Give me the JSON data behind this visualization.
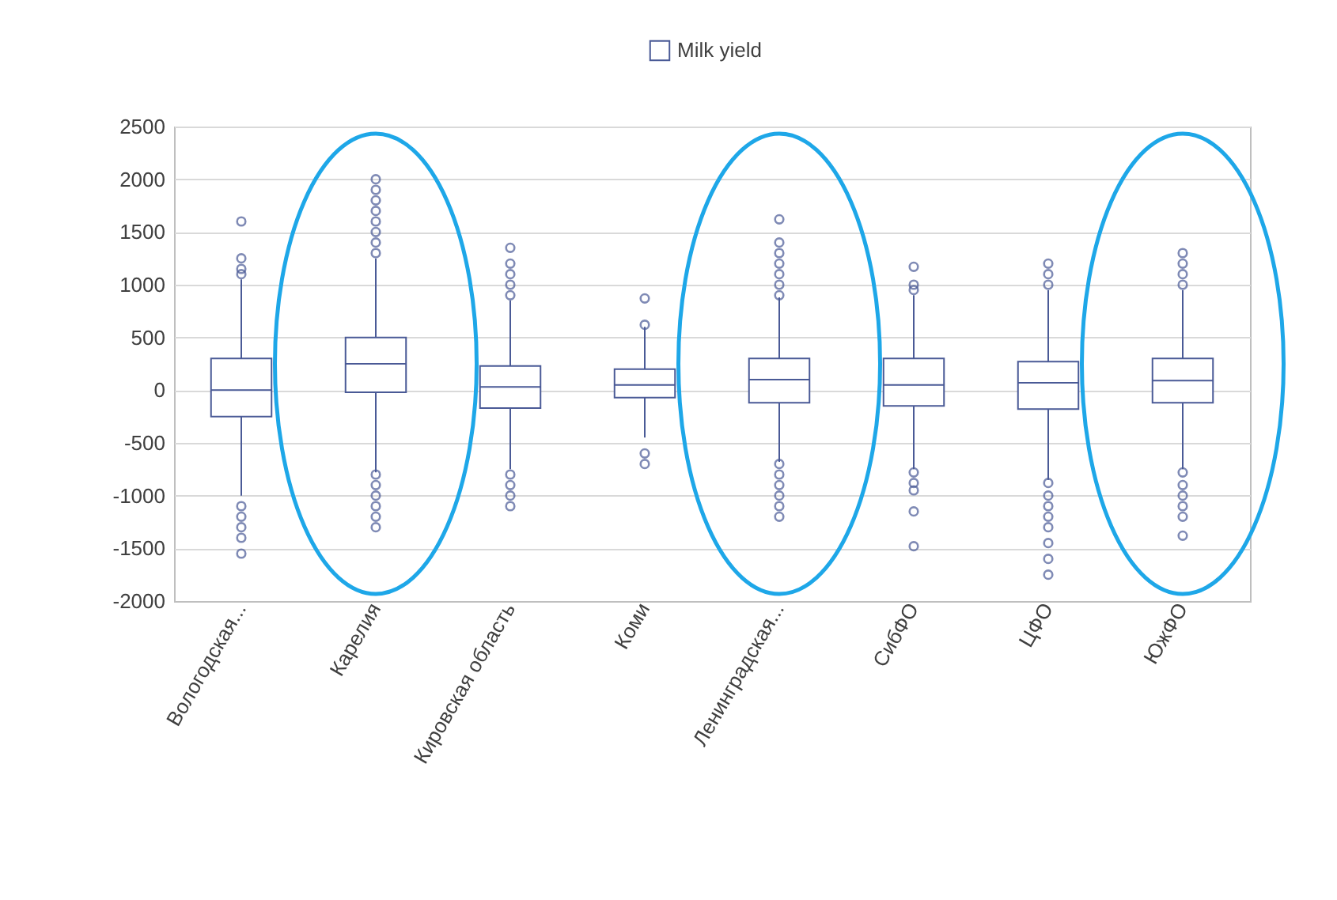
{
  "chart_data": {
    "type": "box",
    "categories": [
      "Вологодская...",
      "Карелия",
      "Кировская область",
      "Коми",
      "Ленинградская...",
      "СибФО",
      "ЦФО",
      "ЮжФО"
    ],
    "series": [
      {
        "name": "Milk yield",
        "color": "#4a5a96",
        "boxes": [
          {
            "low": -1000,
            "q1": -250,
            "median": 0,
            "q3": 300,
            "high": 1050,
            "outliers": [
              1600,
              1250,
              1150,
              1100,
              -1100,
              -1200,
              -1300,
              -1400,
              -1550
            ]
          },
          {
            "low": -780,
            "q1": -20,
            "median": 250,
            "q3": 500,
            "high": 1250,
            "outliers": [
              2000,
              1900,
              1800,
              1700,
              1600,
              1500,
              1400,
              1300,
              -800,
              -900,
              -1000,
              -1100,
              -1200,
              -1300
            ]
          },
          {
            "low": -750,
            "q1": -170,
            "median": 30,
            "q3": 230,
            "high": 850,
            "outliers": [
              1350,
              1200,
              1100,
              1000,
              900,
              -800,
              -900,
              -1000,
              -1100
            ]
          },
          {
            "low": -450,
            "q1": -70,
            "median": 50,
            "q3": 200,
            "high": 600,
            "outliers": [
              870,
              620,
              -600,
              -700
            ]
          },
          {
            "low": -680,
            "q1": -120,
            "median": 100,
            "q3": 300,
            "high": 880,
            "outliers": [
              1620,
              1400,
              1300,
              1200,
              1100,
              1000,
              900,
              -700,
              -800,
              -900,
              -1000,
              -1100,
              -1200
            ]
          },
          {
            "low": -750,
            "q1": -150,
            "median": 50,
            "q3": 300,
            "high": 900,
            "outliers": [
              1170,
              1000,
              950,
              -780,
              -880,
              -950,
              -1150,
              -1480
            ]
          },
          {
            "low": -850,
            "q1": -180,
            "median": 70,
            "q3": 270,
            "high": 950,
            "outliers": [
              1200,
              1100,
              1000,
              -880,
              -1000,
              -1100,
              -1200,
              -1300,
              -1450,
              -1600,
              -1750
            ]
          },
          {
            "low": -750,
            "q1": -120,
            "median": 90,
            "q3": 300,
            "high": 950,
            "outliers": [
              1300,
              1200,
              1100,
              1000,
              -780,
              -900,
              -1000,
              -1100,
              -1200,
              -1380
            ]
          }
        ]
      }
    ],
    "ylim": [
      -2000,
      2500
    ],
    "yticks": [
      -2000,
      -1500,
      -1000,
      -500,
      0,
      500,
      1000,
      1500,
      2000,
      2500
    ],
    "grid": "y",
    "legend": "top"
  }
}
